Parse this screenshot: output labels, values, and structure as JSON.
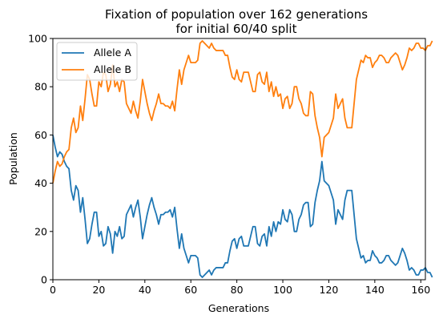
{
  "chart_data": {
    "type": "line",
    "title_line1": "Fixation of population over 162 generations",
    "title_line2": "for initial 60/40 split",
    "xlabel": "Generations",
    "ylabel": "Population",
    "xlim": [
      0,
      162
    ],
    "ylim": [
      0,
      100
    ],
    "xticks": [
      0,
      20,
      40,
      60,
      80,
      100,
      120,
      140,
      160
    ],
    "yticks": [
      0,
      20,
      40,
      60,
      80,
      100
    ],
    "grid": false,
    "legend_position": "upper-left",
    "series": [
      {
        "name": "Allele A",
        "color": "#1f77b4",
        "values": [
          60,
          55,
          51,
          53,
          52,
          49,
          47,
          46,
          37,
          33,
          39,
          37,
          28,
          34,
          25,
          15,
          17,
          23,
          28,
          28,
          18,
          20,
          14,
          15,
          22,
          19,
          11,
          20,
          18,
          22,
          17,
          18,
          27,
          29,
          31,
          26,
          30,
          33,
          26,
          17,
          22,
          27,
          31,
          34,
          30,
          27,
          23,
          27,
          27,
          28,
          28,
          29,
          26,
          30,
          21,
          13,
          19,
          13,
          10,
          7,
          10,
          10,
          10,
          9,
          2,
          1,
          2,
          3,
          4,
          2,
          4,
          5,
          5,
          5,
          5,
          7,
          7,
          12,
          16,
          17,
          13,
          17,
          18,
          14,
          14,
          14,
          18,
          22,
          22,
          15,
          14,
          18,
          19,
          14,
          22,
          18,
          24,
          20,
          24,
          23,
          29,
          25,
          24,
          29,
          27,
          20,
          20,
          25,
          27,
          31,
          32,
          32,
          22,
          23,
          32,
          37,
          41,
          49,
          41,
          40,
          39,
          36,
          33,
          23,
          29,
          27,
          25,
          33,
          37,
          37,
          37,
          27,
          17,
          13,
          9,
          10,
          7,
          8,
          8,
          12,
          10,
          9,
          7,
          7,
          8,
          10,
          10,
          8,
          7,
          6,
          7,
          10,
          13,
          11,
          8,
          4,
          5,
          4,
          2,
          2,
          4,
          4,
          5,
          3,
          3,
          1
        ]
      },
      {
        "name": "Allele B",
        "color": "#ff7f0e",
        "values": [
          40,
          45,
          49,
          47,
          48,
          51,
          53,
          54,
          63,
          67,
          61,
          63,
          72,
          66,
          75,
          85,
          83,
          77,
          72,
          72,
          82,
          80,
          86,
          85,
          78,
          81,
          89,
          80,
          82,
          78,
          83,
          82,
          73,
          71,
          69,
          74,
          70,
          67,
          74,
          83,
          78,
          73,
          69,
          66,
          70,
          73,
          77,
          73,
          73,
          72,
          72,
          71,
          74,
          70,
          79,
          87,
          81,
          87,
          90,
          93,
          90,
          90,
          90,
          91,
          98,
          99,
          98,
          97,
          96,
          98,
          96,
          95,
          95,
          95,
          95,
          93,
          93,
          88,
          84,
          83,
          87,
          83,
          82,
          86,
          86,
          86,
          82,
          78,
          78,
          85,
          86,
          82,
          81,
          86,
          78,
          82,
          76,
          80,
          76,
          77,
          71,
          75,
          76,
          71,
          73,
          80,
          80,
          75,
          73,
          69,
          68,
          68,
          78,
          77,
          68,
          63,
          59,
          51,
          59,
          60,
          61,
          64,
          67,
          77,
          71,
          73,
          75,
          67,
          63,
          63,
          63,
          73,
          83,
          87,
          91,
          90,
          93,
          92,
          92,
          88,
          90,
          91,
          93,
          93,
          92,
          90,
          90,
          92,
          93,
          94,
          93,
          90,
          87,
          89,
          92,
          96,
          95,
          96,
          98,
          98,
          96,
          96,
          95,
          97,
          97,
          99
        ]
      }
    ]
  }
}
